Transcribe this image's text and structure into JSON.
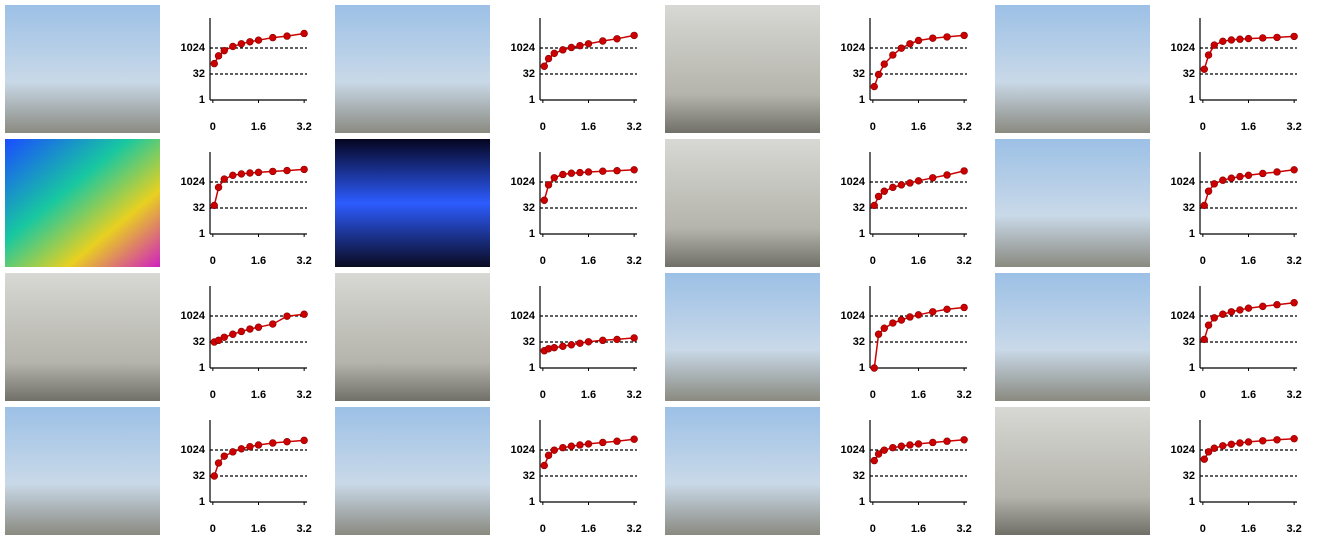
{
  "chart_data": [
    {
      "type": "line",
      "x": [
        0.05,
        0.2,
        0.4,
        0.7,
        1.0,
        1.3,
        1.6,
        2.1,
        2.6,
        3.2
      ],
      "values": [
        128,
        360,
        720,
        1260,
        1800,
        2350,
        2900,
        4100,
        5000,
        7100
      ],
      "color": "#cc0000",
      "xlim": [
        -0.1,
        3.3
      ],
      "ylim": [
        1,
        32768
      ],
      "xticks": [
        0,
        1.6,
        3.2
      ],
      "yticks": [
        1,
        32,
        1024
      ],
      "yscale": "log",
      "grid": true
    },
    {
      "type": "line",
      "x": [
        0.05,
        0.2,
        0.4,
        0.7,
        1.0,
        1.3,
        1.6,
        2.1,
        2.6,
        3.2
      ],
      "values": [
        90,
        250,
        500,
        800,
        1100,
        1400,
        1800,
        2600,
        3500,
        5500
      ],
      "color": "#cc0000",
      "xlim": [
        -0.1,
        3.3
      ],
      "ylim": [
        1,
        32768
      ],
      "xticks": [
        0,
        1.6,
        3.2
      ],
      "yticks": [
        1,
        32,
        1024
      ],
      "yscale": "log",
      "grid": true
    },
    {
      "type": "line",
      "x": [
        0.05,
        0.2,
        0.4,
        0.7,
        1.0,
        1.3,
        1.6,
        2.1,
        2.6,
        3.2
      ],
      "values": [
        6,
        30,
        120,
        400,
        1000,
        1800,
        2800,
        3800,
        4500,
        5500
      ],
      "color": "#cc0000",
      "xlim": [
        -0.1,
        3.3
      ],
      "ylim": [
        1,
        32768
      ],
      "xticks": [
        0,
        1.6,
        3.2
      ],
      "yticks": [
        1,
        32,
        1024
      ],
      "yscale": "log",
      "grid": true
    },
    {
      "type": "line",
      "x": [
        0.05,
        0.2,
        0.4,
        0.7,
        1.0,
        1.3,
        1.6,
        2.1,
        2.6,
        3.2
      ],
      "values": [
        60,
        400,
        1500,
        2500,
        3000,
        3300,
        3600,
        3900,
        4200,
        4800
      ],
      "color": "#cc0000",
      "xlim": [
        -0.1,
        3.3
      ],
      "ylim": [
        1,
        32768
      ],
      "xticks": [
        0,
        1.6,
        3.2
      ],
      "yticks": [
        1,
        32,
        1024
      ],
      "yscale": "log",
      "grid": true
    },
    {
      "type": "line",
      "x": [
        0.05,
        0.2,
        0.4,
        0.7,
        1.0,
        1.3,
        1.6,
        2.1,
        2.6,
        3.2
      ],
      "values": [
        45,
        500,
        1500,
        2500,
        3000,
        3400,
        3700,
        4200,
        4700,
        5500
      ],
      "color": "#cc0000",
      "xlim": [
        -0.1,
        3.3
      ],
      "ylim": [
        1,
        32768
      ],
      "xticks": [
        0,
        1.6,
        3.2
      ],
      "yticks": [
        1,
        32,
        1024
      ],
      "yscale": "log",
      "grid": true
    },
    {
      "type": "line",
      "x": [
        0.05,
        0.2,
        0.4,
        0.7,
        1.0,
        1.3,
        1.6,
        2.1,
        2.6,
        3.2
      ],
      "values": [
        90,
        700,
        1800,
        2800,
        3300,
        3600,
        3900,
        4300,
        4600,
        5200
      ],
      "color": "#cc0000",
      "xlim": [
        -0.1,
        3.3
      ],
      "ylim": [
        1,
        32768
      ],
      "xticks": [
        0,
        1.6,
        3.2
      ],
      "yticks": [
        1,
        32,
        1024
      ],
      "yscale": "log",
      "grid": true
    },
    {
      "type": "line",
      "x": [
        0.05,
        0.2,
        0.4,
        0.7,
        1.0,
        1.3,
        1.6,
        2.1,
        2.6,
        3.2
      ],
      "values": [
        45,
        150,
        300,
        500,
        700,
        900,
        1200,
        1800,
        2600,
        4500
      ],
      "color": "#cc0000",
      "xlim": [
        -0.1,
        3.3
      ],
      "ylim": [
        1,
        32768
      ],
      "xticks": [
        0,
        1.6,
        3.2
      ],
      "yticks": [
        1,
        32,
        1024
      ],
      "yscale": "log",
      "grid": true
    },
    {
      "type": "line",
      "x": [
        0.05,
        0.2,
        0.4,
        0.7,
        1.0,
        1.3,
        1.6,
        2.1,
        2.6,
        3.2
      ],
      "values": [
        45,
        300,
        800,
        1300,
        1700,
        2100,
        2500,
        3200,
        3900,
        5200
      ],
      "color": "#cc0000",
      "xlim": [
        -0.1,
        3.3
      ],
      "ylim": [
        1,
        32768
      ],
      "xticks": [
        0,
        1.6,
        3.2
      ],
      "yticks": [
        1,
        32,
        1024
      ],
      "yscale": "log",
      "grid": true
    },
    {
      "type": "line",
      "x": [
        0.05,
        0.2,
        0.4,
        0.7,
        1.0,
        1.3,
        1.6,
        2.1,
        2.6,
        3.2
      ],
      "values": [
        32,
        40,
        60,
        90,
        130,
        180,
        230,
        350,
        1000,
        1300
      ],
      "color": "#cc0000",
      "xlim": [
        -0.1,
        3.3
      ],
      "ylim": [
        1,
        32768
      ],
      "xticks": [
        0,
        1.6,
        3.2
      ],
      "yticks": [
        1,
        32,
        1024
      ],
      "yscale": "log",
      "grid": true
    },
    {
      "type": "line",
      "x": [
        0.05,
        0.2,
        0.4,
        0.7,
        1.0,
        1.3,
        1.6,
        2.1,
        2.6,
        3.2
      ],
      "values": [
        10,
        13,
        15,
        18,
        22,
        27,
        33,
        40,
        45,
        55
      ],
      "color": "#cc0000",
      "xlim": [
        -0.1,
        3.3
      ],
      "ylim": [
        1,
        32768
      ],
      "xticks": [
        0,
        1.6,
        3.2
      ],
      "yticks": [
        1,
        32,
        1024
      ],
      "yscale": "log",
      "grid": true
    },
    {
      "type": "line",
      "x": [
        0.05,
        0.2,
        0.4,
        0.7,
        1.0,
        1.3,
        1.6,
        2.1,
        2.6,
        3.2
      ],
      "values": [
        1,
        90,
        200,
        400,
        600,
        900,
        1200,
        1800,
        2500,
        3200
      ],
      "color": "#cc0000",
      "xlim": [
        -0.1,
        3.3
      ],
      "ylim": [
        1,
        32768
      ],
      "xticks": [
        0,
        1.6,
        3.2
      ],
      "yticks": [
        1,
        32,
        1024
      ],
      "yscale": "log",
      "grid": true
    },
    {
      "type": "line",
      "x": [
        0.05,
        0.2,
        0.4,
        0.7,
        1.0,
        1.3,
        1.6,
        2.1,
        2.6,
        3.2
      ],
      "values": [
        45,
        300,
        800,
        1300,
        1800,
        2300,
        2900,
        3700,
        4600,
        6000
      ],
      "color": "#cc0000",
      "xlim": [
        -0.1,
        3.3
      ],
      "ylim": [
        1,
        32768
      ],
      "xticks": [
        0,
        1.6,
        3.2
      ],
      "yticks": [
        1,
        32,
        1024
      ],
      "yscale": "log",
      "grid": true
    },
    {
      "type": "line",
      "x": [
        0.05,
        0.2,
        0.4,
        0.7,
        1.0,
        1.3,
        1.6,
        2.1,
        2.6,
        3.2
      ],
      "values": [
        32,
        180,
        450,
        800,
        1200,
        1600,
        2000,
        2600,
        3100,
        3700
      ],
      "color": "#cc0000",
      "xlim": [
        -0.1,
        3.3
      ],
      "ylim": [
        1,
        32768
      ],
      "xticks": [
        0,
        1.6,
        3.2
      ],
      "yticks": [
        1,
        32,
        1024
      ],
      "yscale": "log",
      "grid": true
    },
    {
      "type": "line",
      "x": [
        0.05,
        0.2,
        0.4,
        0.7,
        1.0,
        1.3,
        1.6,
        2.1,
        2.6,
        3.2
      ],
      "values": [
        130,
        500,
        1000,
        1400,
        1700,
        2000,
        2300,
        2800,
        3300,
        4300
      ],
      "color": "#cc0000",
      "xlim": [
        -0.1,
        3.3
      ],
      "ylim": [
        1,
        32768
      ],
      "xticks": [
        0,
        1.6,
        3.2
      ],
      "yticks": [
        1,
        32,
        1024
      ],
      "yscale": "log",
      "grid": true
    },
    {
      "type": "line",
      "x": [
        0.05,
        0.2,
        0.4,
        0.7,
        1.0,
        1.3,
        1.6,
        2.1,
        2.6,
        3.2
      ],
      "values": [
        250,
        600,
        1000,
        1400,
        1700,
        2000,
        2300,
        2800,
        3300,
        4000
      ],
      "color": "#cc0000",
      "xlim": [
        -0.1,
        3.3
      ],
      "ylim": [
        1,
        32768
      ],
      "xticks": [
        0,
        1.6,
        3.2
      ],
      "yticks": [
        1,
        32,
        1024
      ],
      "yscale": "log",
      "grid": true
    },
    {
      "type": "line",
      "x": [
        0.05,
        0.2,
        0.4,
        0.7,
        1.0,
        1.3,
        1.6,
        2.1,
        2.6,
        3.2
      ],
      "values": [
        300,
        800,
        1300,
        1800,
        2200,
        2600,
        3000,
        3500,
        4000,
        4600
      ],
      "color": "#cc0000",
      "xlim": [
        -0.1,
        3.3
      ],
      "ylim": [
        1,
        32768
      ],
      "xticks": [
        0,
        1.6,
        3.2
      ],
      "yticks": [
        1,
        32,
        1024
      ],
      "yscale": "log",
      "grid": true
    }
  ]
}
